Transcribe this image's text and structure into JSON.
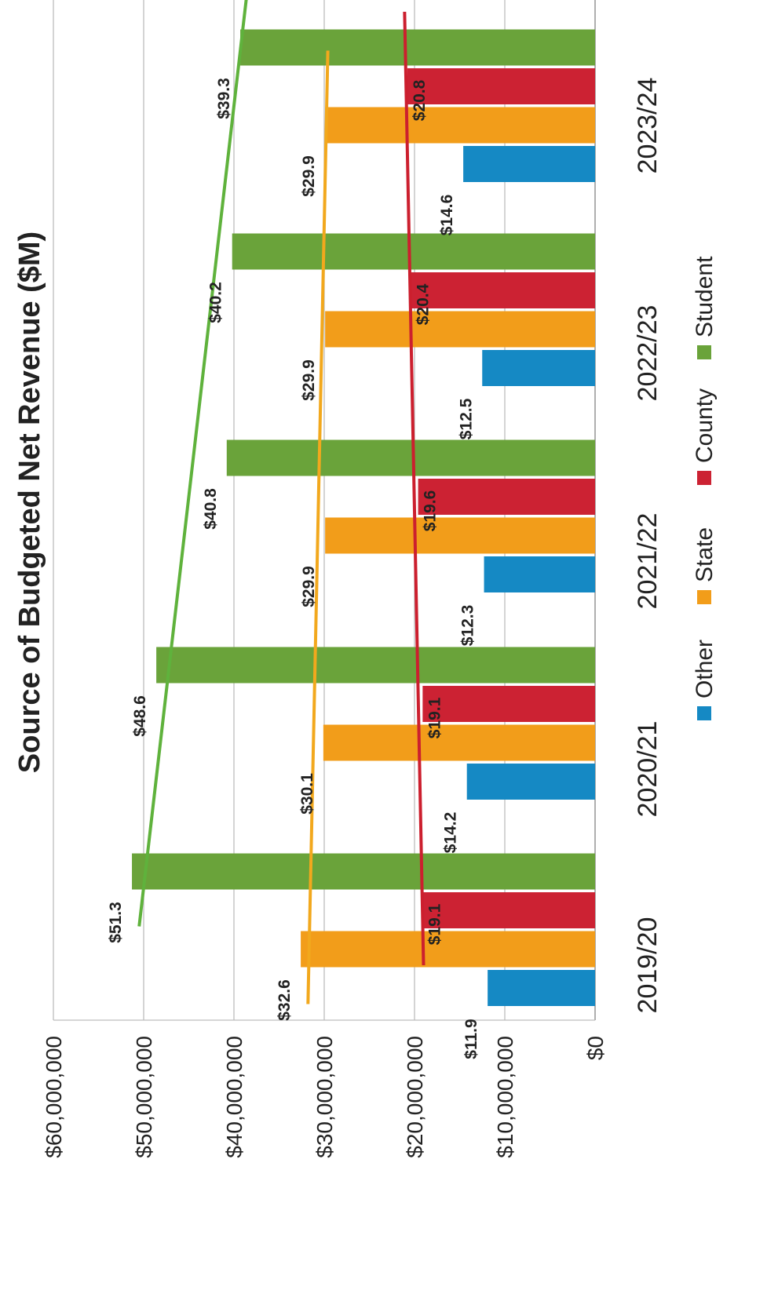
{
  "chart_data": {
    "type": "bar",
    "orientation": "rotated-90-clockwise",
    "title": "Source of Budgeted Net Revenue ($M)",
    "categories": [
      "2019/20",
      "2020/21",
      "2021/22",
      "2022/23",
      "2023/24"
    ],
    "value_axis": {
      "ylim": [
        0,
        60000000
      ],
      "ticks": [
        0,
        10000000,
        20000000,
        30000000,
        40000000,
        50000000,
        60000000
      ],
      "tick_labels": [
        "$0",
        "$10,000,000",
        "$20,000,000",
        "$30,000,000",
        "$40,000,000",
        "$50,000,000",
        "$60,000,000"
      ],
      "grid": true
    },
    "series": [
      {
        "name": "Other",
        "color": "#1589c4",
        "values": [
          11.9,
          14.2,
          12.3,
          12.5,
          14.6
        ],
        "labels": [
          "$11.9",
          "$14.2",
          "$12.3",
          "$12.5",
          "$14.6"
        ]
      },
      {
        "name": "State",
        "color": "#f29d1a",
        "values": [
          32.6,
          30.1,
          29.9,
          29.9,
          29.9
        ],
        "labels": [
          "$32.6",
          "$30.1",
          "$29.9",
          "$29.9",
          "$29.9"
        ]
      },
      {
        "name": "County",
        "color": "#cc2233",
        "values": [
          19.1,
          19.1,
          19.6,
          20.4,
          20.8
        ],
        "labels": [
          "$19.1",
          "$19.1",
          "$19.6",
          "$20.4",
          "$20.8"
        ]
      },
      {
        "name": "Student",
        "color": "#6aa33a",
        "values": [
          51.3,
          48.6,
          40.8,
          40.2,
          39.3
        ],
        "labels": [
          "$51.3",
          "$48.6",
          "$40.8",
          "$40.2",
          "$39.3"
        ]
      }
    ],
    "trendlines": [
      {
        "series": "State",
        "color": "#f2a81d",
        "from": 31.8,
        "to": 29.6
      },
      {
        "series": "County",
        "color": "#cc1f2e",
        "from": 19.0,
        "to": 21.1
      },
      {
        "series": "Student",
        "color": "#5fb23c",
        "from": 50.5,
        "to": 38.3
      }
    ],
    "legend": {
      "placement": "bottom",
      "entries": [
        "Other",
        "State",
        "County",
        "Student"
      ]
    },
    "units_multiplier": 1000000
  }
}
